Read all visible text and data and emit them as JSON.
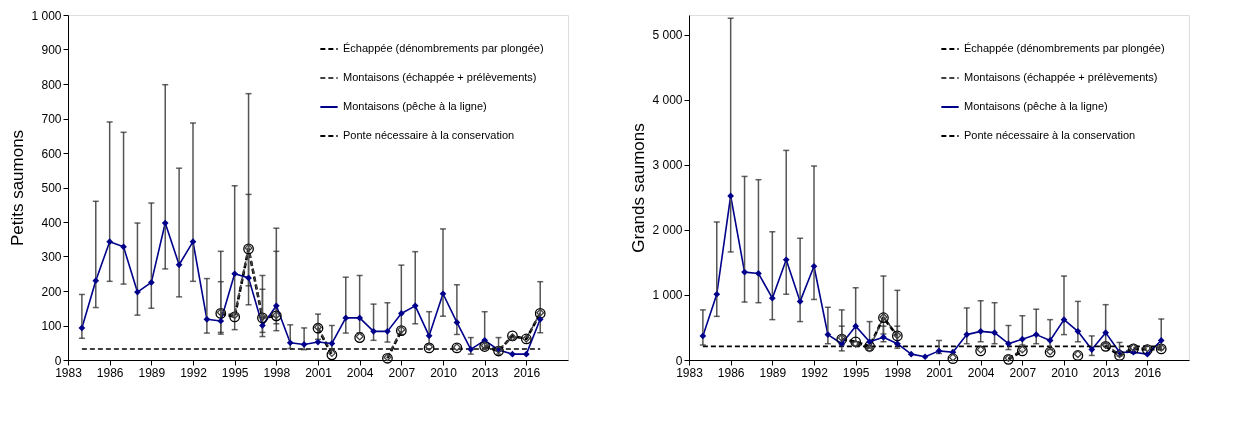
{
  "chart_data": [
    {
      "type": "line",
      "ylabel": "Petits saumons",
      "x": [
        1984,
        1985,
        1986,
        1987,
        1988,
        1989,
        1990,
        1991,
        1992,
        1993,
        1994,
        1995,
        1996,
        1997,
        1998,
        1999,
        2000,
        2001,
        2002,
        2003,
        2004,
        2005,
        2006,
        2007,
        2008,
        2009,
        2010,
        2011,
        2012,
        2013,
        2014,
        2015,
        2016,
        2017
      ],
      "xlim": [
        1983,
        2019
      ],
      "xticks": [
        1983,
        1986,
        1989,
        1992,
        1995,
        1998,
        2001,
        2004,
        2007,
        2010,
        2013,
        2016
      ],
      "ylim": [
        0,
        1000
      ],
      "yticks": [
        0,
        100,
        200,
        300,
        400,
        500,
        600,
        700,
        800,
        900,
        {
          "value": 1000,
          "label": "1 000"
        }
      ],
      "grid": false,
      "legend": "top right",
      "series": [
        {
          "name": "Échappée (dénombrements par plongée)",
          "color": "#000000",
          "line_style": "dashed",
          "marker": "circle",
          "values": [
            null,
            null,
            null,
            null,
            null,
            null,
            null,
            null,
            null,
            null,
            135,
            125,
            322,
            122,
            128,
            null,
            null,
            92,
            15,
            null,
            65,
            null,
            5,
            85,
            null,
            35,
            null,
            35,
            null,
            39,
            26,
            70,
            61,
            135
          ],
          "errors": [
            null,
            null,
            null,
            null,
            null,
            null,
            null,
            null,
            null,
            null,
            [
              80,
              315
            ],
            null,
            [
              215,
              772
            ],
            [
              80,
              245
            ],
            [
              85,
              315
            ],
            null,
            null,
            [
              60,
              133
            ],
            null,
            null,
            null,
            null,
            null,
            null,
            null,
            null,
            null,
            null,
            null,
            null,
            null,
            null,
            null,
            null
          ]
        },
        {
          "name": "Montaisons (échappée + prélèvements)",
          "color": "#404040",
          "line_style": "dashed",
          "marker": "diamond",
          "values": [
            null,
            null,
            null,
            null,
            null,
            null,
            null,
            null,
            null,
            null,
            138,
            130,
            325,
            125,
            130,
            null,
            null,
            95,
            20,
            null,
            68,
            null,
            8,
            88,
            null,
            38,
            null,
            37,
            null,
            42,
            30,
            66,
            62,
            137
          ]
        },
        {
          "name": "Montaisons (pêche à la ligne)",
          "color": "#00008b",
          "line_style": "solid",
          "marker": "diamond",
          "values": [
            93,
            230,
            343,
            328,
            197,
            225,
            397,
            276,
            343,
            118,
            113,
            250,
            238,
            100,
            157,
            50,
            45,
            52,
            48,
            122,
            122,
            83,
            83,
            135,
            157,
            70,
            192,
            109,
            31,
            57,
            29,
            17,
            17,
            118
          ],
          "errors": [
            [
              63,
              190
            ],
            [
              152,
              460
            ],
            [
              228,
              690
            ],
            [
              220,
              660
            ],
            [
              130,
              397
            ],
            [
              150,
              455
            ],
            [
              264,
              798
            ],
            [
              183,
              556
            ],
            [
              228,
              687
            ],
            [
              78,
              236
            ],
            [
              75,
              227
            ],
            [
              88,
              505
            ],
            [
              160,
              480
            ],
            [
              68,
              205
            ],
            [
              105,
              382
            ],
            [
              33,
              102
            ],
            [
              30,
              93
            ],
            null,
            [
              32,
              100
            ],
            [
              78,
              240
            ],
            [
              79,
              245
            ],
            [
              57,
              162
            ],
            [
              52,
              166
            ],
            [
              74,
              275
            ],
            [
              105,
              314
            ],
            [
              45,
              140
            ],
            [
              127,
              380
            ],
            [
              74,
              218
            ],
            [
              17,
              65
            ],
            [
              35,
              140
            ],
            [
              17,
              65
            ],
            null,
            null,
            [
              79,
              227
            ]
          ]
        },
        {
          "name": "Ponte nécessaire à la conservation",
          "color": "#000000",
          "line_style": "dashed",
          "marker": "none",
          "values": [
            32,
            32,
            32,
            32,
            32,
            32,
            32,
            32,
            32,
            32,
            32,
            32,
            32,
            32,
            32,
            32,
            32,
            32,
            32,
            32,
            32,
            32,
            32,
            32,
            32,
            32,
            32,
            32,
            32,
            32,
            32,
            32,
            32,
            32
          ]
        }
      ]
    },
    {
      "type": "line",
      "ylabel": "Grands saumons",
      "x": [
        1984,
        1985,
        1986,
        1987,
        1988,
        1989,
        1990,
        1991,
        1992,
        1993,
        1994,
        1995,
        1996,
        1997,
        1998,
        1999,
        2000,
        2001,
        2002,
        2003,
        2004,
        2005,
        2006,
        2007,
        2008,
        2009,
        2010,
        2011,
        2012,
        2013,
        2014,
        2015,
        2016,
        2017
      ],
      "xlim": [
        1983,
        2019
      ],
      "xticks": [
        1983,
        1986,
        1989,
        1992,
        1995,
        1998,
        2001,
        2004,
        2007,
        2010,
        2013,
        2016
      ],
      "ylim": [
        0,
        5300
      ],
      "yticks": [
        0,
        {
          "value": 1000,
          "label": "1 000"
        },
        {
          "value": 2000,
          "label": "2 000"
        },
        {
          "value": 3000,
          "label": "3 000"
        },
        {
          "value": 4000,
          "label": "4 000"
        },
        {
          "value": 5000,
          "label": "5 000"
        }
      ],
      "grid": false,
      "legend": "top right",
      "series": [
        {
          "name": "Échappée (dénombrements par plongée)",
          "color": "#000000",
          "line_style": "dashed",
          "marker": "circle",
          "values": [
            null,
            null,
            null,
            null,
            null,
            null,
            null,
            null,
            null,
            null,
            320,
            280,
            210,
            650,
            370,
            null,
            null,
            null,
            20,
            null,
            140,
            null,
            10,
            140,
            null,
            120,
            null,
            70,
            null,
            210,
            70,
            170,
            160,
            170
          ],
          "errors": [
            null,
            null,
            null,
            null,
            null,
            null,
            null,
            null,
            null,
            null,
            [
              230,
              770
            ],
            null,
            null,
            [
              400,
              1290
            ],
            [
              250,
              1070
            ],
            null,
            null,
            null,
            null,
            null,
            null,
            null,
            null,
            null,
            null,
            null,
            null,
            null,
            null,
            null,
            null,
            null,
            null,
            null
          ]
        },
        {
          "name": "Montaisons (échappée + prélèvements)",
          "color": "#404040",
          "line_style": "dashed",
          "marker": "diamond",
          "values": [
            null,
            null,
            null,
            null,
            null,
            null,
            null,
            null,
            null,
            null,
            340,
            250,
            180,
            660,
            380,
            null,
            null,
            null,
            40,
            null,
            160,
            null,
            30,
            160,
            null,
            130,
            null,
            90,
            null,
            230,
            90,
            190,
            180,
            190
          ]
        },
        {
          "name": "Montaisons (pêche à la ligne)",
          "color": "#00008b",
          "line_style": "solid",
          "marker": "diamond",
          "values": [
            370,
            1010,
            2520,
            1350,
            1330,
            950,
            1540,
            900,
            1440,
            390,
            250,
            520,
            280,
            350,
            250,
            90,
            50,
            140,
            120,
            390,
            440,
            420,
            250,
            320,
            390,
            300,
            620,
            440,
            160,
            420,
            120,
            120,
            90,
            300
          ],
          "errors": [
            [
              230,
              770
            ],
            [
              670,
              2120
            ],
            [
              1660,
              5250
            ],
            [
              890,
              2820
            ],
            [
              880,
              2770
            ],
            [
              620,
              1970
            ],
            [
              1010,
              3220
            ],
            [
              590,
              1870
            ],
            [
              930,
              2980
            ],
            [
              250,
              810
            ],
            [
              140,
              520
            ],
            [
              280,
              1110
            ],
            [
              180,
              590
            ],
            [
              280,
              520
            ],
            [
              180,
              520
            ],
            null,
            null,
            [
              100,
              300
            ],
            null,
            [
              250,
              800
            ],
            [
              280,
              910
            ],
            [
              250,
              880
            ],
            [
              160,
              530
            ],
            [
              230,
              680
            ],
            [
              250,
              780
            ],
            [
              160,
              620
            ],
            [
              390,
              1290
            ],
            [
              280,
              900
            ],
            [
              70,
              370
            ],
            [
              250,
              850
            ],
            [
              60,
              270
            ],
            null,
            null,
            [
              160,
              630
            ]
          ]
        },
        {
          "name": "Ponte nécessaire à la conservation",
          "color": "#000000",
          "line_style": "dashed",
          "marker": "none",
          "values": [
            210,
            210,
            210,
            210,
            210,
            210,
            210,
            210,
            210,
            210,
            210,
            210,
            210,
            210,
            210,
            210,
            210,
            210,
            210,
            210,
            210,
            210,
            210,
            210,
            210,
            210,
            210,
            210,
            210,
            210,
            210,
            210,
            210,
            210
          ]
        }
      ]
    }
  ]
}
